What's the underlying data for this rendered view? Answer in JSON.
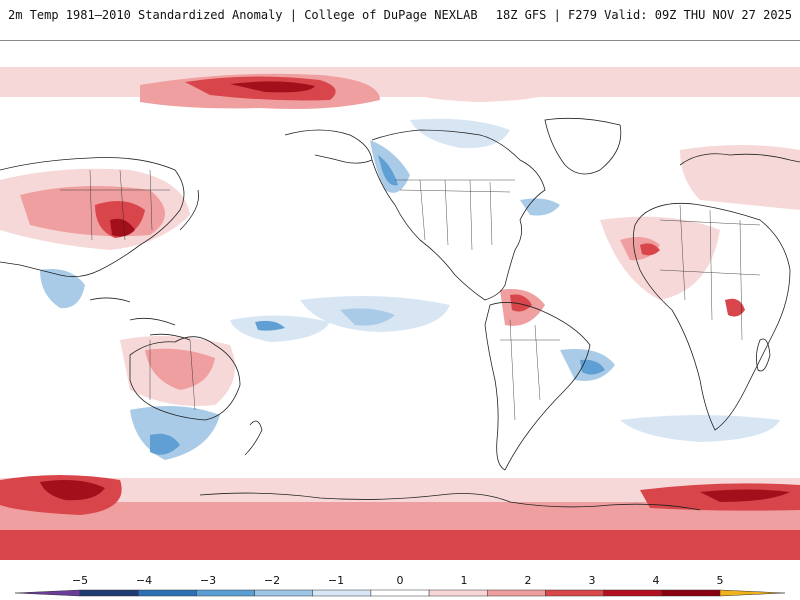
{
  "header": {
    "left": "2m Temp 1981–2010 Standardized Anomaly | College of DuPage NEXLAB",
    "right": "18Z GFS | F279 Valid: 09Z THU NOV 27 2025"
  },
  "legend": {
    "ticks": [
      "−5",
      "−4",
      "−3",
      "−2",
      "−1",
      "0",
      "1",
      "2",
      "3",
      "4",
      "5"
    ],
    "colors": [
      "#6a3d9a",
      "#1f3b73",
      "#2d6fb5",
      "#5a9fd4",
      "#9cc5e6",
      "#d6e6f5",
      "#ffffff",
      "#f9d6d6",
      "#ee9e9e",
      "#d9474a",
      "#b30f1e",
      "#8a0010",
      "#f0b21a"
    ]
  },
  "map": {
    "projection": "equirectangular",
    "center_longitude": -150,
    "palette": {
      "pos1": "#f7d8d8",
      "pos2": "#ef9f9f",
      "pos3": "#d8454a",
      "pos4": "#a3101c",
      "neg1": "#d8e6f4",
      "neg2": "#a9cbe8",
      "neg3": "#5f9fd3",
      "neg4": "#2f6fb4",
      "coast": "#222222"
    }
  }
}
